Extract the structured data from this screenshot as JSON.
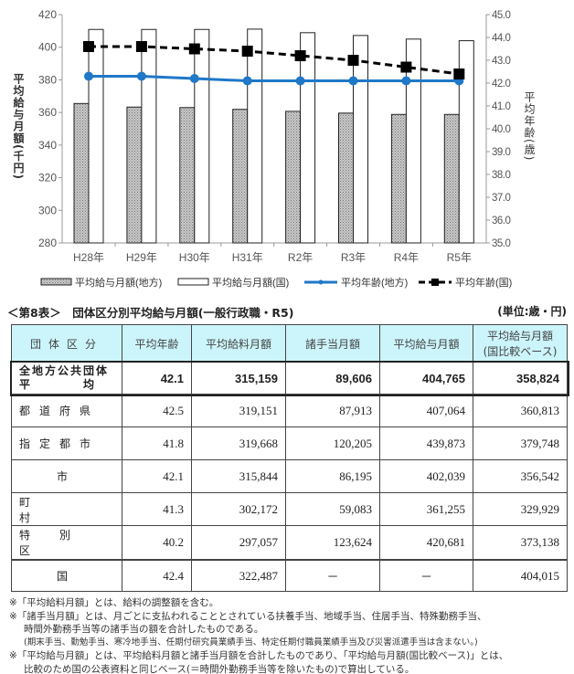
{
  "chart_data": {
    "type": "bar",
    "categories": [
      "H28年",
      "H29年",
      "H30年",
      "H31年",
      "R2年",
      "R3年",
      "R4年",
      "R5年"
    ],
    "series": [
      {
        "name": "平均給与月額(地方)",
        "kind": "bar",
        "axis": "left",
        "color": "#a8a8a8",
        "values": [
          365.5,
          363.3,
          363.0,
          361.9,
          360.7,
          359.6,
          358.8,
          358.8
        ]
      },
      {
        "name": "平均給与月額(国)",
        "kind": "bar",
        "axis": "left",
        "color": "#ffffff",
        "values": [
          410.9,
          410.9,
          410.9,
          411.1,
          408.9,
          407.2,
          405.0,
          404.0
        ]
      },
      {
        "name": "平均年齢(地方)",
        "kind": "line",
        "axis": "right",
        "color": "#1f78c8",
        "values": [
          42.3,
          42.3,
          42.2,
          42.1,
          42.1,
          42.1,
          42.1,
          42.1
        ]
      },
      {
        "name": "平均年齢(国)",
        "kind": "line-dashed",
        "axis": "right",
        "color": "#000000",
        "values": [
          43.6,
          43.6,
          43.5,
          43.4,
          43.2,
          43.0,
          42.7,
          42.4
        ]
      }
    ],
    "ylabel": "平均給与月額(千円)",
    "y2label": "平均年齢(歳)",
    "ylim": [
      280,
      420
    ],
    "yticks": [
      "280",
      "300",
      "320",
      "340",
      "360",
      "380",
      "400",
      "420"
    ],
    "y2lim": [
      35,
      45
    ],
    "y2ticks": [
      "35.0",
      "36.0",
      "37.0",
      "38.0",
      "39.0",
      "40.0",
      "41.0",
      "42.0",
      "43.0",
      "44.0",
      "45.0"
    ],
    "legend": "bottom",
    "grid": false
  },
  "table": {
    "title": "＜第8表＞　団体区分別平均給与月額(一般行政職・R5)",
    "unit": "(単位:歳・円)",
    "headers": [
      "団体区分",
      "平均年齢",
      "平均給料月額",
      "諸手当月額",
      "平均給与月額",
      "平均給与月額(国比較ベース)"
    ],
    "header_last_line1": "平均給与月額",
    "header_last_line2": "(国比較ベース)",
    "total": {
      "label1": "全地方公共団体",
      "label2": "平　　　　均",
      "values": [
        "42.1",
        "315,159",
        "89,606",
        "404,765",
        "358,824"
      ]
    },
    "rows": [
      {
        "label": "都道府県",
        "values": [
          "42.5",
          "319,151",
          "87,913",
          "407,064",
          "360,813"
        ]
      },
      {
        "label": "指定都市",
        "values": [
          "41.8",
          "319,668",
          "120,205",
          "439,873",
          "379,748"
        ]
      },
      {
        "label": "市",
        "values": [
          "42.1",
          "315,844",
          "86,195",
          "402,039",
          "356,542"
        ]
      },
      {
        "label": "町　　　村",
        "values": [
          "41.3",
          "302,172",
          "59,083",
          "361,255",
          "329,929"
        ]
      },
      {
        "label": "特　別　区",
        "values": [
          "40.2",
          "297,057",
          "123,624",
          "420,681",
          "373,138"
        ]
      }
    ],
    "national": {
      "label": "国",
      "values": [
        "42.4",
        "322,487",
        "－",
        "－",
        "404,015"
      ]
    }
  },
  "notes": [
    "※「平均給料月額」とは、給料の調整額を含む。",
    "※「諸手当月額」とは、月ごとに支払われることとされている扶養手当、地域手当、住居手当、特殊勤務手当、",
    "時間外勤務手当等の諸手当の額を合計したものである。",
    "(期末手当、勤勉手当、寒冷地手当、任期付研究員業績手当、特定任期付職員業績手当及び災害派遣手当は含まない。)",
    "※「平均給与月額」とは、平均給料月額と諸手当月額を合計したものであり、「平均給与月額(国比較ベース)」とは、",
    "比較のため国の公表資料と同じベース(＝時間外勤務手当等を除いたもの)で算出している。"
  ]
}
